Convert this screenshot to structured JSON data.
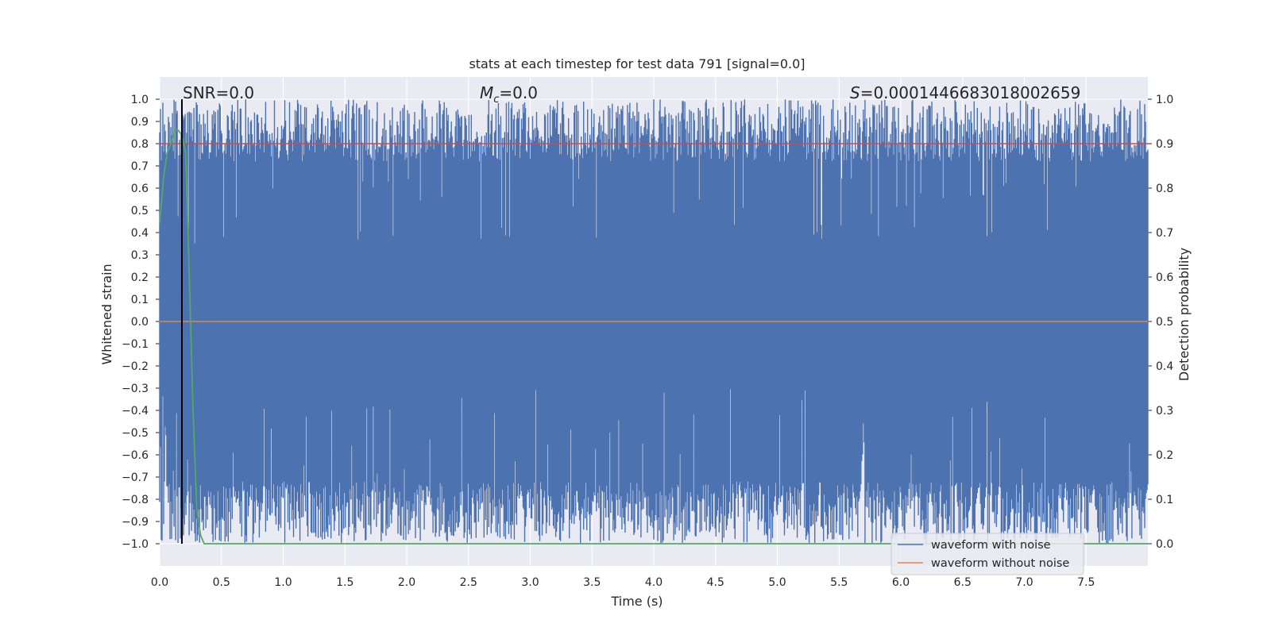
{
  "chart_data": {
    "type": "line",
    "title": "stats at each timestep for test data 791 [signal=0.0]",
    "xlabel": "Time (s)",
    "ylabel": "Whitened strain",
    "y2label": "Detection probability",
    "xlim": [
      0.0,
      8.0
    ],
    "ylim": [
      -1.1,
      1.1
    ],
    "y2lim": [
      -0.05,
      1.05
    ],
    "x_ticks": [
      "0.0",
      "0.5",
      "1.0",
      "1.5",
      "2.0",
      "2.5",
      "3.0",
      "3.5",
      "4.0",
      "4.5",
      "5.0",
      "5.5",
      "6.0",
      "6.5",
      "7.0",
      "7.5"
    ],
    "y_ticks": [
      "1.0",
      "0.9",
      "0.8",
      "0.7",
      "0.6",
      "0.5",
      "0.4",
      "0.3",
      "0.2",
      "0.1",
      "0.0",
      "−0.1",
      "−0.2",
      "−0.3",
      "−0.4",
      "−0.5",
      "−0.6",
      "−0.7",
      "−0.8",
      "−0.9",
      "−1.0"
    ],
    "y2_ticks": [
      "1.0",
      "0.9",
      "0.8",
      "0.7",
      "0.6",
      "0.5",
      "0.4",
      "0.3",
      "0.2",
      "0.1",
      "0.0"
    ],
    "grid": true,
    "background": "#eaeaf2",
    "annotations": {
      "snr_text": "SNR=0.0",
      "mc_symbol": "M",
      "mc_subscript": "c",
      "mc_value": "=0.0",
      "s_symbol": "S",
      "s_value": "=0.0001446683018002659"
    },
    "legend": {
      "placement": "bottom-right",
      "entries": [
        {
          "label": "waveform with noise",
          "color": "#4c72b0"
        },
        {
          "label": "waveform without noise",
          "color": "#dd8452"
        }
      ]
    },
    "series": [
      {
        "name": "waveform with noise",
        "color": "#4c72b0",
        "description_values": "dense whitened noise filling approx [-1.0, 1.0]"
      },
      {
        "name": "waveform without noise",
        "color": "#dd8452",
        "x": [
          0.0,
          8.0
        ],
        "values": [
          0.0,
          0.0
        ]
      },
      {
        "color": "#55a868",
        "axis": "right",
        "x": [
          0.0,
          0.03,
          0.06,
          0.09,
          0.12,
          0.15,
          0.18,
          0.21,
          0.24,
          0.27,
          0.3,
          0.33,
          0.36,
          0.4,
          8.0
        ],
        "values": [
          0.72,
          0.82,
          0.88,
          0.9,
          0.93,
          0.93,
          0.92,
          0.88,
          0.6,
          0.3,
          0.08,
          0.02,
          0.0,
          0.0,
          0.0
        ]
      }
    ],
    "threshold_line": {
      "axis": "right",
      "value": 0.9,
      "color": "#c44e52"
    },
    "marker_line": {
      "x": 0.18,
      "color": "#000000"
    }
  }
}
